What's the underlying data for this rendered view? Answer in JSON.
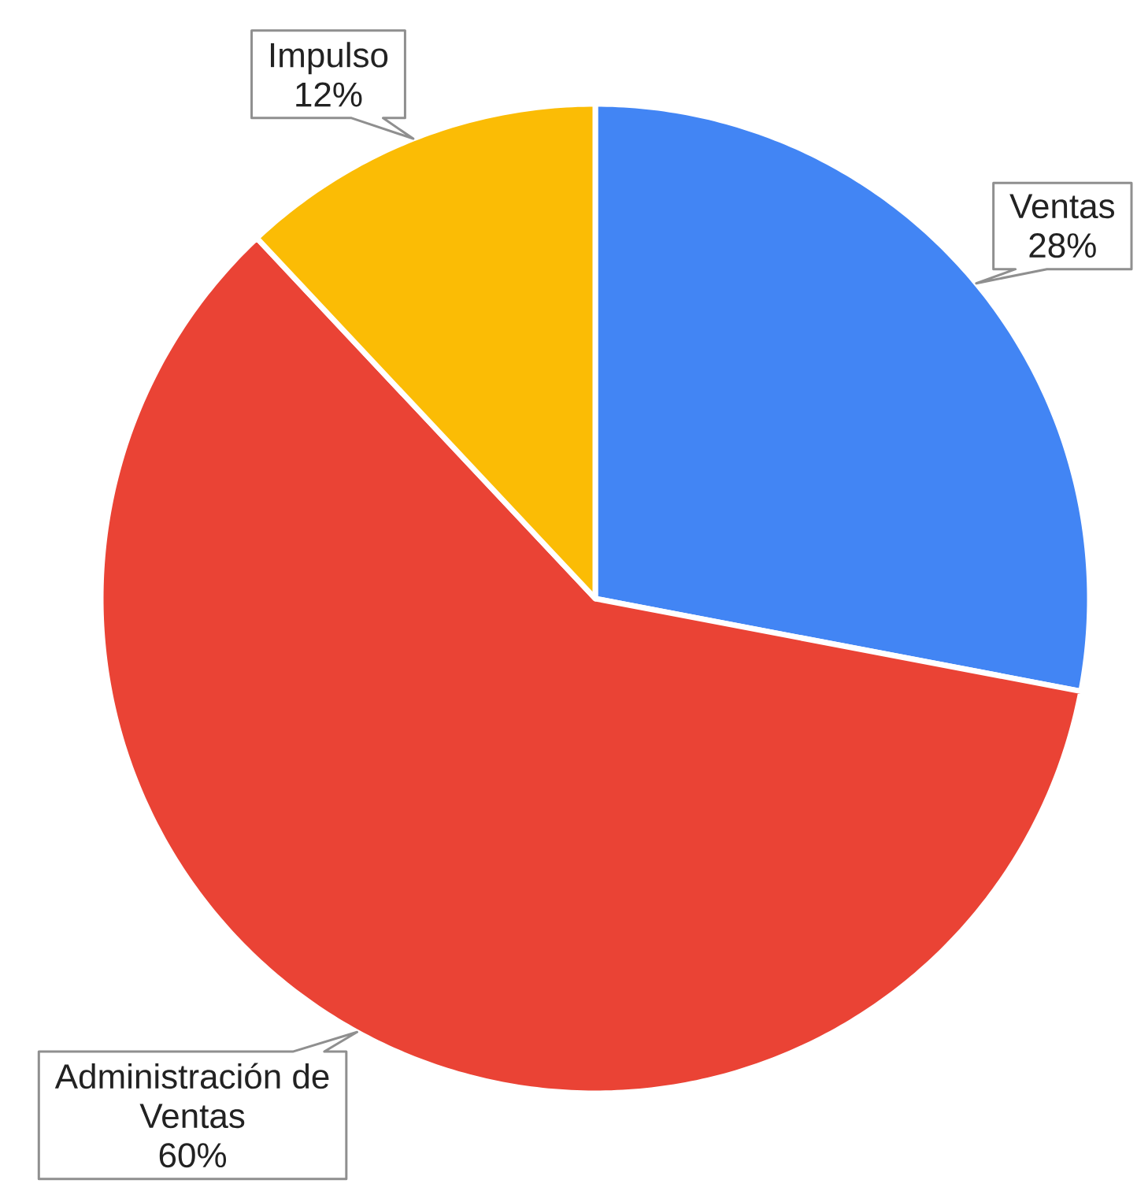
{
  "chart_data": {
    "type": "pie",
    "categories": [
      "Ventas",
      "Administración de Ventas",
      "Impulso"
    ],
    "values": [
      28,
      60,
      12
    ],
    "colors": [
      "#4285f4",
      "#ea4335",
      "#fbbc05"
    ],
    "value_labels": [
      "28%",
      "60%",
      "12%"
    ]
  }
}
